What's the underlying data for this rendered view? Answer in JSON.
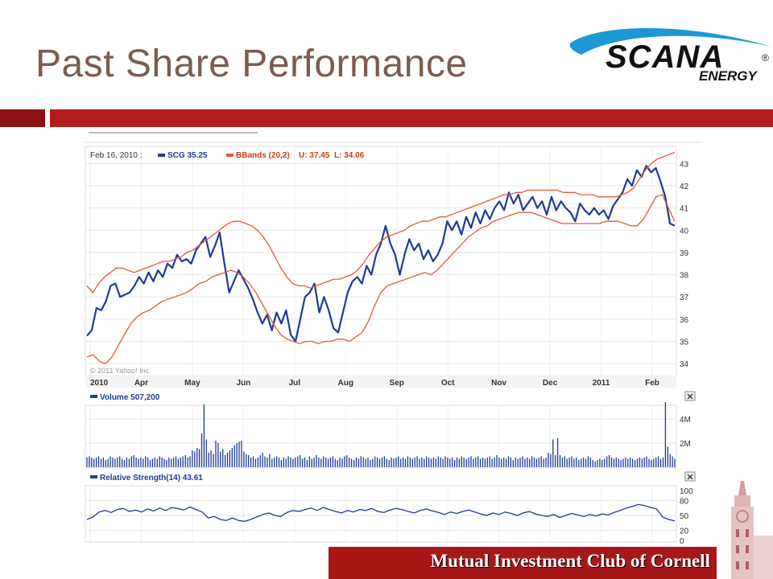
{
  "slide": {
    "title": "Past Share Performance",
    "footer": "Mutual Investment Club of Cornell",
    "logo_text": "SCANA",
    "logo_subtext": "ENERGY",
    "logo_registered": "®",
    "accent_color": "#b01c1c",
    "title_color": "#7a5c4e"
  },
  "chart_data": [
    {
      "type": "line",
      "legend": {
        "date": "Feb 16, 2010 :",
        "series_label": "SCG 35.25",
        "bands_label": "BBands (20,2)",
        "upper_label": "U: 37.45",
        "lower_label": "L: 34.06"
      },
      "copyright": "© 2011 Yahoo! Inc.",
      "x_ticks": [
        "2010",
        "Apr",
        "May",
        "Jun",
        "Jul",
        "Aug",
        "Sep",
        "Oct",
        "Nov",
        "Dec",
        "2011",
        "Feb"
      ],
      "y_ticks": [
        34,
        35,
        36,
        37,
        38,
        39,
        40,
        41,
        42,
        43
      ],
      "ylim": [
        33.5,
        43.7
      ],
      "grid": true,
      "series": [
        {
          "name": "SCG",
          "color": "#1f3a93",
          "values": [
            35.25,
            35.5,
            36.5,
            36.4,
            36.8,
            37.5,
            37.6,
            37.0,
            37.1,
            37.2,
            37.5,
            37.9,
            37.6,
            38.1,
            37.7,
            38.2,
            37.9,
            38.5,
            38.3,
            38.9,
            38.6,
            38.7,
            38.5,
            39.1,
            39.4,
            39.7,
            38.8,
            39.3,
            39.9,
            38.5,
            37.2,
            37.7,
            38.2,
            37.8,
            37.4,
            36.9,
            36.3,
            35.8,
            36.2,
            35.5,
            36.3,
            35.8,
            36.4,
            35.3,
            35.0,
            36.0,
            37.0,
            37.2,
            37.6,
            36.3,
            37.0,
            36.4,
            35.6,
            35.4,
            36.3,
            37.2,
            37.7,
            37.9,
            37.6,
            38.4,
            38.0,
            38.9,
            39.4,
            40.2,
            39.4,
            38.9,
            38.0,
            38.9,
            39.6,
            39.1,
            39.4,
            38.7,
            39.1,
            38.6,
            38.9,
            39.4,
            40.4,
            40.0,
            40.4,
            39.8,
            40.6,
            40.1,
            40.8,
            40.3,
            40.9,
            40.5,
            41.0,
            41.3,
            40.9,
            41.7,
            41.2,
            41.6,
            40.9,
            41.2,
            41.5,
            41.0,
            41.3,
            40.7,
            41.5,
            40.9,
            41.3,
            41.0,
            40.8,
            40.4,
            41.2,
            40.9,
            40.7,
            41.0,
            40.7,
            40.9,
            40.5,
            41.1,
            41.4,
            41.7,
            42.3,
            42.0,
            42.7,
            42.4,
            42.9,
            42.6,
            42.8,
            42.2,
            41.5,
            40.3,
            40.2
          ]
        },
        {
          "name": "BBands upper",
          "color": "#e05a3a",
          "values": [
            37.5,
            37.2,
            37.6,
            37.9,
            38.1,
            38.3,
            38.3,
            38.2,
            38.1,
            38.2,
            38.3,
            38.4,
            38.5,
            38.6,
            38.6,
            38.7,
            38.8,
            39.0,
            39.1,
            39.3,
            39.5,
            39.7,
            39.9,
            40.1,
            40.3,
            40.4,
            40.4,
            40.3,
            40.2,
            40.0,
            39.7,
            39.3,
            38.8,
            38.3,
            37.9,
            37.6,
            37.5,
            37.5,
            37.4,
            37.5,
            37.6,
            37.7,
            37.8,
            37.8,
            37.9,
            38.0,
            38.2,
            38.5,
            38.9,
            39.2,
            39.5,
            39.7,
            39.8,
            39.9,
            40.0,
            40.2,
            40.3,
            40.4,
            40.4,
            40.5,
            40.6,
            40.6,
            40.7,
            40.8,
            40.9,
            41.0,
            41.1,
            41.2,
            41.3,
            41.4,
            41.5,
            41.6,
            41.6,
            41.7,
            41.7,
            41.8,
            41.8,
            41.8,
            41.8,
            41.8,
            41.8,
            41.7,
            41.7,
            41.7,
            41.6,
            41.6,
            41.6,
            41.5,
            41.5,
            41.5,
            41.5,
            41.6,
            41.7,
            41.9,
            42.3,
            42.7,
            43.0,
            43.2,
            43.3,
            43.4,
            43.5
          ]
        },
        {
          "name": "BBands lower",
          "color": "#e05a3a",
          "values": [
            34.3,
            34.4,
            34.1,
            34.0,
            34.3,
            34.8,
            35.3,
            35.8,
            36.1,
            36.3,
            36.4,
            36.6,
            36.8,
            36.9,
            37.0,
            37.1,
            37.2,
            37.4,
            37.6,
            37.7,
            37.9,
            38.0,
            38.1,
            38.2,
            38.1,
            37.9,
            37.6,
            37.2,
            36.7,
            36.2,
            35.7,
            35.3,
            35.1,
            35.0,
            34.9,
            35.0,
            35.0,
            34.9,
            35.0,
            35.0,
            35.1,
            35.1,
            35.0,
            35.2,
            35.4,
            35.9,
            36.6,
            37.2,
            37.5,
            37.6,
            37.7,
            37.8,
            37.9,
            38.0,
            38.1,
            38.0,
            38.2,
            38.5,
            38.8,
            39.1,
            39.4,
            39.7,
            39.9,
            40.1,
            40.2,
            40.4,
            40.5,
            40.6,
            40.7,
            40.8,
            40.8,
            40.8,
            40.7,
            40.6,
            40.5,
            40.4,
            40.3,
            40.3,
            40.3,
            40.3,
            40.3,
            40.3,
            40.3,
            40.4,
            40.4,
            40.4,
            40.3,
            40.2,
            40.2,
            40.5,
            41.0,
            41.5,
            41.6,
            41.0,
            40.4
          ]
        }
      ]
    },
    {
      "type": "bar",
      "legend": "Volume 507,200",
      "y_ticks": [
        "4M",
        "2M"
      ],
      "ylim": [
        0,
        5000000
      ],
      "color": "#1f3a93",
      "values": [
        0.8,
        0.9,
        0.8,
        0.7,
        0.8,
        0.9,
        0.7,
        0.8,
        0.6,
        0.7,
        0.9,
        0.8,
        0.7,
        0.8,
        0.9,
        0.7,
        0.6,
        0.8,
        0.7,
        0.9,
        1.0,
        0.8,
        0.7,
        0.8,
        0.7,
        0.9,
        0.8,
        0.6,
        0.7,
        0.8,
        0.7,
        0.9,
        0.8,
        0.7,
        0.6,
        0.8,
        0.7,
        0.8,
        0.9,
        0.7,
        0.8,
        0.9,
        1.0,
        0.8,
        0.9,
        1.4,
        1.3,
        1.6,
        1.5,
        2.8,
        5.2,
        2.3,
        1.2,
        1.4,
        1.1,
        2.2,
        2.0,
        1.3,
        1.5,
        1.0,
        1.2,
        1.4,
        1.6,
        1.8,
        2.0,
        2.1,
        2.2,
        1.3,
        1.1,
        1.0,
        0.8,
        0.9,
        0.7,
        0.8,
        1.0,
        1.2,
        0.9,
        0.8,
        1.1,
        0.7,
        0.8,
        0.9,
        0.8,
        0.6,
        0.8,
        0.7,
        0.9,
        0.8,
        0.7,
        0.8,
        0.9,
        1.0,
        0.7,
        0.8,
        0.6,
        0.9,
        0.7,
        0.8,
        1.0,
        0.8,
        0.7,
        0.9,
        0.8,
        0.7,
        0.8,
        0.9,
        0.7,
        0.6,
        0.8,
        0.7,
        0.9,
        1.0,
        0.8,
        0.7,
        0.6,
        0.8,
        0.7,
        0.9,
        0.8,
        0.7,
        0.8,
        0.6,
        0.7,
        0.9,
        0.8,
        0.7,
        0.8,
        0.9,
        0.7,
        0.6,
        0.8,
        0.7,
        0.8,
        0.9,
        0.7,
        0.8,
        0.7,
        0.9,
        0.8,
        0.7,
        0.8,
        0.9,
        0.7,
        0.8,
        0.7,
        0.9,
        0.8,
        0.7,
        0.8,
        0.7,
        0.9,
        0.8,
        0.7,
        0.9,
        0.8,
        0.7,
        0.8,
        0.6,
        0.8,
        0.7,
        0.9,
        0.8,
        0.7,
        0.8,
        0.9,
        0.7,
        0.8,
        0.9,
        0.7,
        0.8,
        0.7,
        0.8,
        0.9,
        0.7,
        0.8,
        1.0,
        0.8,
        0.7,
        0.8,
        0.7,
        0.9,
        0.8,
        0.6,
        0.8,
        0.7,
        0.8,
        0.9,
        0.7,
        0.8,
        0.7,
        0.9,
        0.8,
        0.7,
        0.8,
        0.9,
        0.7,
        0.8,
        1.2,
        1.1,
        2.3,
        1.0,
        2.4,
        1.0,
        0.8,
        0.9,
        0.7,
        0.8,
        0.9,
        0.7,
        0.8,
        0.6,
        0.7,
        0.8,
        0.7,
        0.9,
        0.8,
        0.6,
        0.5,
        0.6,
        0.7,
        0.6,
        0.7,
        0.9,
        1.0,
        0.8,
        0.7,
        0.8,
        0.7,
        0.6,
        0.7,
        0.8,
        0.7,
        0.8,
        0.7,
        0.6,
        0.7,
        0.8,
        0.7,
        0.8,
        0.9,
        0.7,
        0.6,
        0.7,
        0.8,
        0.9,
        0.7,
        0.8,
        5.4,
        1.7,
        1.1,
        0.9,
        0.7
      ]
    },
    {
      "type": "line",
      "legend": "Relative Strength(14) 43.61",
      "y_ticks": [
        100,
        80,
        50,
        20,
        0
      ],
      "ylim": [
        0,
        100
      ],
      "color": "#1f3a93",
      "values": [
        42,
        47,
        57,
        60,
        56,
        62,
        64,
        58,
        61,
        57,
        63,
        59,
        65,
        60,
        66,
        64,
        61,
        67,
        62,
        57,
        45,
        48,
        42,
        40,
        45,
        40,
        38,
        42,
        47,
        52,
        55,
        50,
        48,
        56,
        60,
        58,
        62,
        65,
        60,
        66,
        62,
        58,
        55,
        60,
        57,
        62,
        60,
        64,
        58,
        56,
        61,
        64,
        62,
        58,
        55,
        60,
        63,
        59,
        56,
        52,
        57,
        54,
        58,
        61,
        57,
        53,
        50,
        55,
        52,
        57,
        54,
        50,
        55,
        58,
        53,
        50,
        48,
        52,
        46,
        50,
        54,
        51,
        48,
        52,
        49,
        53,
        51,
        56,
        60,
        65,
        68,
        72,
        70,
        66,
        63,
        47,
        42,
        39
      ]
    }
  ]
}
